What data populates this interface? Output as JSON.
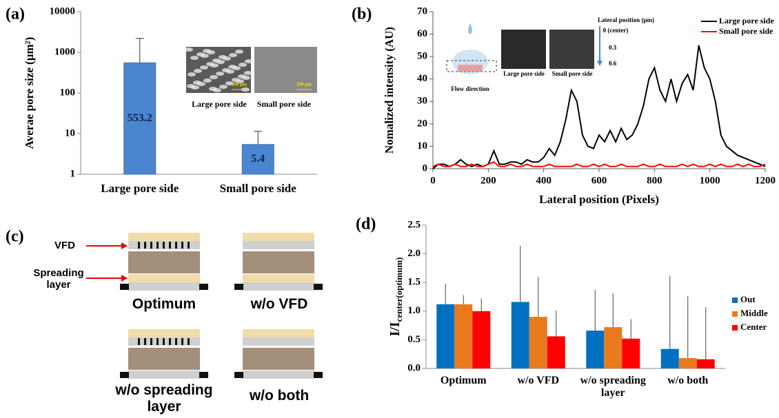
{
  "chart_data": [
    {
      "type": "bar",
      "panel_label": "(a)",
      "y_label": "Averae pore size (μm²)",
      "categories": [
        "Large pore side",
        "Small pore side"
      ],
      "values": [
        553.2,
        5.4
      ],
      "errors": [
        1650,
        6
      ],
      "color": "#4a86d0",
      "log_scale": true,
      "ylim": [
        1,
        10000
      ],
      "yticks": [
        1,
        10,
        100,
        1000,
        10000
      ],
      "annotations": [
        "Large pore side",
        "Small pore side",
        "200 μm",
        "200 μm"
      ]
    },
    {
      "type": "line",
      "panel_label": "(b)",
      "x_label": "Lateral position (Pixels)",
      "y_label": "Nomalized intensity (AU)",
      "x": [
        0,
        20,
        40,
        60,
        80,
        100,
        120,
        140,
        160,
        180,
        200,
        220,
        240,
        260,
        280,
        300,
        320,
        340,
        360,
        380,
        400,
        420,
        440,
        460,
        480,
        500,
        520,
        540,
        560,
        580,
        600,
        620,
        640,
        660,
        680,
        700,
        720,
        740,
        760,
        780,
        800,
        820,
        840,
        860,
        880,
        900,
        920,
        940,
        960,
        980,
        1000,
        1020,
        1040,
        1060,
        1080,
        1100,
        1120,
        1140,
        1160,
        1180,
        1200
      ],
      "series": [
        {
          "name": "Large pore side",
          "color": "#000000",
          "values": [
            0,
            2,
            2,
            1,
            2,
            4,
            2,
            1,
            2,
            1,
            2,
            8,
            2,
            2,
            3,
            3,
            2,
            4,
            3,
            3,
            5,
            9,
            6,
            12,
            22,
            35,
            30,
            15,
            10,
            9,
            15,
            12,
            17,
            12,
            18,
            13,
            15,
            20,
            28,
            40,
            45,
            35,
            30,
            40,
            30,
            38,
            42,
            35,
            55,
            45,
            40,
            30,
            15,
            10,
            8,
            6,
            5,
            4,
            3,
            2,
            1
          ]
        },
        {
          "name": "Small pore side",
          "color": "#ff0000",
          "values": [
            1,
            2,
            1,
            1,
            2,
            1,
            1,
            2,
            1,
            1,
            2,
            3,
            1,
            1,
            2,
            1,
            1,
            2,
            1,
            1,
            1,
            2,
            1,
            1,
            1,
            1,
            2,
            1,
            1,
            2,
            1,
            2,
            1,
            1,
            2,
            1,
            1,
            1,
            2,
            1,
            1,
            2,
            1,
            1,
            1,
            2,
            1,
            2,
            1,
            1,
            2,
            1,
            2,
            1,
            1,
            2,
            1,
            2,
            1,
            1,
            2
          ]
        }
      ],
      "xlim": [
        0,
        1200
      ],
      "xticks": [
        0,
        200,
        400,
        600,
        800,
        1000,
        1200
      ],
      "ylim": [
        0,
        70
      ],
      "yticks": [
        0,
        10,
        20,
        30,
        40,
        50,
        60,
        70
      ],
      "legend": "top-right",
      "annotations": [
        "Flow direction",
        "Large pore side",
        "Small pore side",
        "Lateral position (μm)",
        "0 (center)",
        "0.3",
        "0.6"
      ]
    },
    {
      "type": "grouped_bar",
      "panel_label": "(d)",
      "y_label": "I/I",
      "y_label_subscript": "center(optimum)",
      "categories": [
        "Optimum",
        "w/o VFD",
        "w/o spreading layer",
        "w/o both"
      ],
      "series": [
        {
          "name": "Out",
          "color": "#0070c0",
          "values": [
            1.12,
            1.16,
            0.66,
            0.34
          ],
          "errors": [
            0.36,
            0.98,
            0.71,
            1.28
          ]
        },
        {
          "name": "Middle",
          "color": "#e97a1e",
          "values": [
            1.12,
            0.9,
            0.72,
            0.18
          ],
          "errors": [
            0.16,
            0.7,
            0.59,
            1.08
          ]
        },
        {
          "name": "Center",
          "color": "#ff0000",
          "values": [
            1.0,
            0.56,
            0.52,
            0.16
          ],
          "errors": [
            0.22,
            0.45,
            0.34,
            0.91
          ]
        }
      ],
      "ylim": [
        0,
        2.5
      ],
      "yticks": [
        {
          "value": 0,
          "label": "0.0"
        },
        {
          "value": 0.5,
          "label": "0.5"
        },
        {
          "value": 1,
          "label": "1.0"
        },
        {
          "value": 1.5,
          "label": "1.5"
        },
        {
          "value": 2,
          "label": "2.0"
        },
        {
          "value": 2.5,
          "label": "2.5"
        }
      ],
      "legend": "right"
    }
  ],
  "diagram": {
    "panel_label": "(c)",
    "labels": [
      "VFD",
      "Spreading layer"
    ],
    "configurations": [
      "Optimum",
      "w/o VFD",
      "w/o spreading layer",
      "w/o both"
    ]
  }
}
